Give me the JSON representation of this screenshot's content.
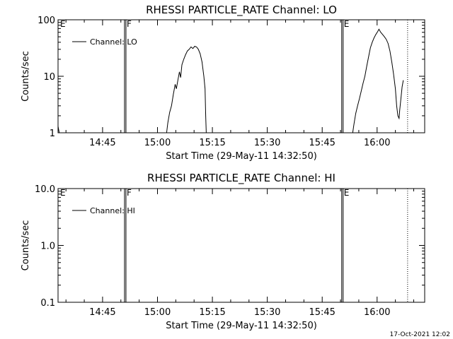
{
  "chart_data": [
    {
      "type": "line",
      "title": "RHESSI PARTICLE_RATE Channel: LO",
      "xlabel": "Start Time (29-May-11 14:32:50)",
      "ylabel": "Counts/sec",
      "y_scale": "log",
      "xlim": [
        "14:32:50",
        "16:13:00"
      ],
      "ylim": [
        1,
        100
      ],
      "x_ticks": [
        "14:45",
        "15:00",
        "15:15",
        "15:30",
        "15:45",
        "16:00"
      ],
      "y_ticks": [
        "1",
        "10",
        "100"
      ],
      "legend": "Channel: LO",
      "legend_position": "top-left",
      "markers": [
        {
          "label": "E",
          "time": "14:32:50",
          "style": "none"
        },
        {
          "label": "F",
          "time": "14:51:00",
          "style": "solid"
        },
        {
          "label": "E",
          "time": "15:50:20",
          "style": "solid"
        },
        {
          "label": "",
          "time": "16:08:20",
          "style": "dotted"
        }
      ],
      "series": [
        {
          "name": "Channel: LO",
          "segments": [
            [
              [
                "14:32:50",
                1.3
              ],
              [
                "14:33:10",
                0.9
              ]
            ],
            [
              [
                "15:02:30",
                0.9
              ],
              [
                "15:02:50",
                1.5
              ],
              [
                "15:03:20",
                2.3
              ],
              [
                "15:03:50",
                3.0
              ],
              [
                "15:04:20",
                4.8
              ],
              [
                "15:04:50",
                7.2
              ],
              [
                "15:05:10",
                6.0
              ],
              [
                "15:05:30",
                8.0
              ],
              [
                "15:06:00",
                12.0
              ],
              [
                "15:06:20",
                9.5
              ],
              [
                "15:06:40",
                16.0
              ],
              [
                "15:07:10",
                20.0
              ],
              [
                "15:07:40",
                24.0
              ],
              [
                "15:08:10",
                28.0
              ],
              [
                "15:08:40",
                30.0
              ],
              [
                "15:09:10",
                33.0
              ],
              [
                "15:09:40",
                31.0
              ],
              [
                "15:10:10",
                34.0
              ],
              [
                "15:10:40",
                33.0
              ],
              [
                "15:11:10",
                30.0
              ],
              [
                "15:11:40",
                25.0
              ],
              [
                "15:12:10",
                18.0
              ],
              [
                "15:12:40",
                10.0
              ],
              [
                "15:13:00",
                6.0
              ],
              [
                "15:13:10",
                2.0
              ],
              [
                "15:13:20",
                0.9
              ]
            ],
            [
              [
                "15:53:20",
                0.9
              ],
              [
                "15:53:40",
                1.4
              ],
              [
                "15:54:10",
                2.2
              ],
              [
                "15:54:40",
                3.0
              ],
              [
                "15:55:10",
                4.0
              ],
              [
                "15:55:40",
                5.5
              ],
              [
                "15:56:10",
                7.5
              ],
              [
                "15:56:40",
                10.0
              ],
              [
                "15:57:10",
                15.0
              ],
              [
                "15:57:40",
                22.0
              ],
              [
                "15:58:10",
                32.0
              ],
              [
                "15:58:40",
                40.0
              ],
              [
                "15:59:10",
                48.0
              ],
              [
                "15:59:40",
                55.0
              ],
              [
                "16:00:10",
                62.0
              ],
              [
                "16:00:30",
                68.0
              ],
              [
                "16:01:00",
                60.0
              ],
              [
                "16:01:30",
                55.0
              ],
              [
                "16:02:00",
                50.0
              ],
              [
                "16:02:30",
                45.0
              ],
              [
                "16:03:00",
                38.0
              ],
              [
                "16:03:30",
                28.0
              ],
              [
                "16:04:00",
                18.0
              ],
              [
                "16:04:30",
                11.0
              ],
              [
                "16:05:00",
                6.0
              ],
              [
                "16:05:20",
                3.0
              ],
              [
                "16:05:40",
                2.0
              ],
              [
                "16:06:00",
                1.8
              ],
              [
                "16:06:10",
                2.5
              ],
              [
                "16:06:30",
                4.0
              ],
              [
                "16:06:50",
                6.5
              ],
              [
                "16:07:10",
                8.5
              ]
            ]
          ]
        }
      ]
    },
    {
      "type": "line",
      "title": "RHESSI PARTICLE_RATE Channel: HI",
      "xlabel": "Start Time (29-May-11 14:32:50)",
      "ylabel": "Counts/sec",
      "y_scale": "log",
      "xlim": [
        "14:32:50",
        "16:13:00"
      ],
      "ylim": [
        0.1,
        10
      ],
      "x_ticks": [
        "14:45",
        "15:00",
        "15:15",
        "15:30",
        "15:45",
        "16:00"
      ],
      "y_ticks": [
        "0.1",
        "1.0",
        "10.0"
      ],
      "legend": "Channel: HI",
      "legend_position": "top-left",
      "markers": [
        {
          "label": "E",
          "time": "14:32:50",
          "style": "none"
        },
        {
          "label": "F",
          "time": "14:51:00",
          "style": "solid"
        },
        {
          "label": "E",
          "time": "15:50:20",
          "style": "solid"
        },
        {
          "label": "",
          "time": "16:08:20",
          "style": "dotted"
        }
      ],
      "series": [
        {
          "name": "Channel: HI",
          "segments": []
        }
      ]
    }
  ],
  "footer": {
    "timestamp": "17-Oct-2021 12:02"
  }
}
